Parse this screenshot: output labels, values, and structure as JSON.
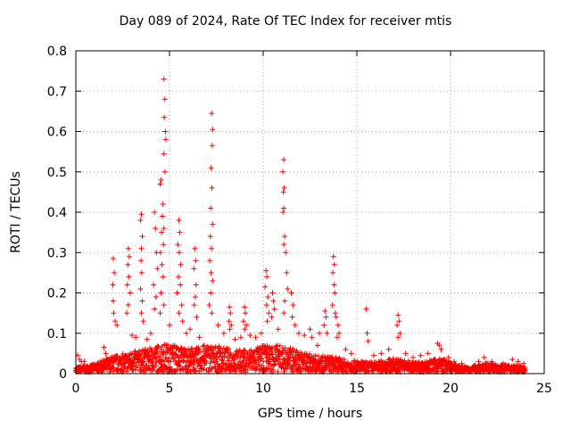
{
  "chart_data": {
    "type": "scatter",
    "title": "Day 089 of 2024, Rate Of TEC Index for receiver mtis",
    "xlabel": "GPS time / hours",
    "ylabel": "ROTI / TECUs",
    "xlim": [
      0,
      25
    ],
    "ylim": [
      0,
      0.8
    ],
    "xticks": [
      0,
      5,
      10,
      15,
      20,
      25
    ],
    "yticks": [
      0,
      0.1,
      0.2,
      0.3,
      0.4,
      0.5,
      0.6,
      0.7,
      0.8
    ],
    "grid": true,
    "marker": "+",
    "color": "#ff0000",
    "points": [
      [
        4.7,
        0.73
      ],
      [
        4.75,
        0.68
      ],
      [
        4.72,
        0.635
      ],
      [
        4.78,
        0.6
      ],
      [
        4.8,
        0.58
      ],
      [
        4.7,
        0.545
      ],
      [
        4.76,
        0.5
      ],
      [
        4.55,
        0.48
      ],
      [
        4.5,
        0.47
      ],
      [
        4.65,
        0.42
      ],
      [
        4.62,
        0.39
      ],
      [
        4.7,
        0.36
      ],
      [
        4.58,
        0.35
      ],
      [
        4.68,
        0.32
      ],
      [
        4.52,
        0.3
      ],
      [
        4.6,
        0.27
      ],
      [
        4.66,
        0.24
      ],
      [
        4.55,
        0.2
      ],
      [
        4.7,
        0.17
      ],
      [
        4.5,
        0.15
      ],
      [
        7.25,
        0.645
      ],
      [
        7.3,
        0.605
      ],
      [
        7.28,
        0.565
      ],
      [
        7.22,
        0.51
      ],
      [
        7.26,
        0.46
      ],
      [
        7.2,
        0.41
      ],
      [
        7.3,
        0.37
      ],
      [
        7.18,
        0.34
      ],
      [
        7.24,
        0.31
      ],
      [
        7.15,
        0.28
      ],
      [
        7.22,
        0.25
      ],
      [
        7.3,
        0.23
      ],
      [
        7.2,
        0.2
      ],
      [
        7.12,
        0.17
      ],
      [
        7.26,
        0.15
      ],
      [
        11.1,
        0.53
      ],
      [
        11.05,
        0.5
      ],
      [
        11.12,
        0.46
      ],
      [
        11.08,
        0.45
      ],
      [
        11.1,
        0.41
      ],
      [
        11.06,
        0.4
      ],
      [
        11.15,
        0.34
      ],
      [
        11.1,
        0.32
      ],
      [
        11.2,
        0.3
      ],
      [
        11.25,
        0.25
      ],
      [
        11.3,
        0.21
      ],
      [
        11.15,
        0.18
      ],
      [
        11.1,
        0.15
      ],
      [
        3.5,
        0.395
      ],
      [
        3.45,
        0.38
      ],
      [
        3.55,
        0.34
      ],
      [
        3.5,
        0.31
      ],
      [
        3.48,
        0.28
      ],
      [
        3.52,
        0.25
      ],
      [
        3.45,
        0.21
      ],
      [
        3.55,
        0.18
      ],
      [
        3.5,
        0.15
      ],
      [
        3.6,
        0.13
      ],
      [
        2.8,
        0.31
      ],
      [
        2.85,
        0.29
      ],
      [
        2.78,
        0.27
      ],
      [
        2.82,
        0.24
      ],
      [
        2.75,
        0.22
      ],
      [
        2.9,
        0.2
      ],
      [
        2.8,
        0.17
      ],
      [
        2.72,
        0.15
      ],
      [
        2.0,
        0.285
      ],
      [
        2.05,
        0.25
      ],
      [
        1.98,
        0.22
      ],
      [
        2.0,
        0.18
      ],
      [
        2.02,
        0.15
      ],
      [
        2.1,
        0.13
      ],
      [
        2.2,
        0.12
      ],
      [
        4.2,
        0.4
      ],
      [
        4.25,
        0.36
      ],
      [
        4.3,
        0.3
      ],
      [
        4.35,
        0.26
      ],
      [
        4.15,
        0.22
      ],
      [
        4.28,
        0.19
      ],
      [
        4.2,
        0.16
      ],
      [
        5.5,
        0.38
      ],
      [
        5.55,
        0.35
      ],
      [
        5.45,
        0.32
      ],
      [
        5.52,
        0.3
      ],
      [
        5.6,
        0.27
      ],
      [
        5.48,
        0.24
      ],
      [
        5.58,
        0.22
      ],
      [
        5.4,
        0.2
      ],
      [
        5.65,
        0.17
      ],
      [
        5.5,
        0.15
      ],
      [
        5.7,
        0.13
      ],
      [
        6.35,
        0.31
      ],
      [
        6.4,
        0.28
      ],
      [
        6.3,
        0.26
      ],
      [
        6.42,
        0.22
      ],
      [
        6.38,
        0.19
      ],
      [
        6.32,
        0.17
      ],
      [
        6.45,
        0.14
      ],
      [
        8.2,
        0.165
      ],
      [
        8.25,
        0.15
      ],
      [
        8.18,
        0.13
      ],
      [
        8.3,
        0.12
      ],
      [
        8.22,
        0.11
      ],
      [
        9.0,
        0.165
      ],
      [
        9.05,
        0.15
      ],
      [
        8.95,
        0.13
      ],
      [
        9.1,
        0.12
      ],
      [
        9.02,
        0.11
      ],
      [
        10.15,
        0.255
      ],
      [
        10.2,
        0.24
      ],
      [
        10.1,
        0.215
      ],
      [
        10.25,
        0.19
      ],
      [
        10.18,
        0.17
      ],
      [
        10.3,
        0.15
      ],
      [
        10.22,
        0.13
      ],
      [
        10.5,
        0.2
      ],
      [
        10.55,
        0.18
      ],
      [
        10.6,
        0.16
      ],
      [
        10.45,
        0.14
      ],
      [
        11.5,
        0.2
      ],
      [
        11.6,
        0.17
      ],
      [
        11.55,
        0.14
      ],
      [
        11.7,
        0.12
      ],
      [
        12.5,
        0.11
      ],
      [
        12.6,
        0.09
      ],
      [
        13.0,
        0.1
      ],
      [
        13.3,
        0.155
      ],
      [
        13.35,
        0.14
      ],
      [
        13.25,
        0.12
      ],
      [
        13.4,
        0.1
      ],
      [
        13.75,
        0.29
      ],
      [
        13.8,
        0.27
      ],
      [
        13.72,
        0.25
      ],
      [
        13.78,
        0.22
      ],
      [
        13.82,
        0.2
      ],
      [
        13.7,
        0.17
      ],
      [
        13.85,
        0.15
      ],
      [
        13.9,
        0.14
      ],
      [
        14.0,
        0.12
      ],
      [
        14.05,
        0.1
      ],
      [
        13.95,
        0.09
      ],
      [
        15.5,
        0.16
      ],
      [
        15.55,
        0.1
      ],
      [
        15.6,
        0.08
      ],
      [
        17.2,
        0.145
      ],
      [
        17.25,
        0.13
      ],
      [
        17.15,
        0.12
      ],
      [
        17.3,
        0.1
      ],
      [
        17.2,
        0.09
      ],
      [
        19.3,
        0.075
      ],
      [
        19.4,
        0.07
      ],
      [
        19.5,
        0.06
      ],
      [
        1.5,
        0.065
      ],
      [
        1.6,
        0.05
      ],
      [
        0.1,
        0.045
      ],
      [
        0.2,
        0.035
      ],
      [
        0.3,
        0.03
      ],
      [
        0.45,
        0.03
      ],
      [
        3.0,
        0.095
      ],
      [
        3.2,
        0.09
      ],
      [
        3.8,
        0.085
      ],
      [
        4.0,
        0.1
      ],
      [
        5.0,
        0.12
      ],
      [
        5.9,
        0.1
      ],
      [
        6.1,
        0.11
      ],
      [
        6.6,
        0.09
      ],
      [
        7.6,
        0.12
      ],
      [
        7.9,
        0.1
      ],
      [
        8.5,
        0.085
      ],
      [
        8.8,
        0.09
      ],
      [
        9.3,
        0.095
      ],
      [
        9.6,
        0.09
      ],
      [
        9.9,
        0.1
      ],
      [
        10.8,
        0.11
      ],
      [
        11.9,
        0.1
      ],
      [
        12.2,
        0.095
      ],
      [
        12.9,
        0.07
      ],
      [
        14.4,
        0.06
      ],
      [
        14.7,
        0.05
      ],
      [
        15.9,
        0.045
      ],
      [
        16.3,
        0.05
      ],
      [
        16.7,
        0.06
      ],
      [
        17.6,
        0.05
      ],
      [
        18.0,
        0.04
      ],
      [
        18.4,
        0.045
      ],
      [
        18.8,
        0.05
      ],
      [
        19.9,
        0.04
      ],
      [
        20.2,
        0.03
      ],
      [
        20.6,
        0.025
      ],
      [
        21.5,
        0.03
      ],
      [
        21.8,
        0.04
      ],
      [
        22.2,
        0.03
      ],
      [
        22.8,
        0.025
      ],
      [
        23.3,
        0.035
      ],
      [
        23.6,
        0.03
      ],
      [
        23.9,
        0.025
      ]
    ],
    "envelope": [
      [
        0.0,
        0.012
      ],
      [
        0.5,
        0.015
      ],
      [
        1.0,
        0.02
      ],
      [
        1.5,
        0.03
      ],
      [
        2.0,
        0.04
      ],
      [
        2.5,
        0.045
      ],
      [
        3.0,
        0.05
      ],
      [
        3.5,
        0.055
      ],
      [
        4.0,
        0.06
      ],
      [
        4.5,
        0.07
      ],
      [
        5.0,
        0.07
      ],
      [
        5.5,
        0.065
      ],
      [
        6.0,
        0.06
      ],
      [
        6.5,
        0.06
      ],
      [
        7.0,
        0.07
      ],
      [
        7.5,
        0.065
      ],
      [
        8.0,
        0.06
      ],
      [
        8.5,
        0.055
      ],
      [
        9.0,
        0.055
      ],
      [
        9.5,
        0.06
      ],
      [
        10.0,
        0.065
      ],
      [
        10.5,
        0.07
      ],
      [
        11.0,
        0.065
      ],
      [
        11.5,
        0.06
      ],
      [
        12.0,
        0.05
      ],
      [
        12.5,
        0.045
      ],
      [
        13.0,
        0.04
      ],
      [
        13.5,
        0.04
      ],
      [
        14.0,
        0.035
      ],
      [
        14.5,
        0.03
      ],
      [
        15.0,
        0.028
      ],
      [
        15.5,
        0.025
      ],
      [
        16.0,
        0.025
      ],
      [
        16.5,
        0.03
      ],
      [
        17.0,
        0.035
      ],
      [
        17.5,
        0.03
      ],
      [
        18.0,
        0.025
      ],
      [
        18.5,
        0.025
      ],
      [
        19.0,
        0.03
      ],
      [
        19.5,
        0.035
      ],
      [
        20.0,
        0.025
      ],
      [
        20.5,
        0.015
      ],
      [
        21.0,
        0.012
      ],
      [
        21.5,
        0.02
      ],
      [
        22.0,
        0.022
      ],
      [
        22.5,
        0.018
      ],
      [
        23.0,
        0.018
      ],
      [
        23.5,
        0.018
      ],
      [
        24.0,
        0.015
      ]
    ]
  }
}
